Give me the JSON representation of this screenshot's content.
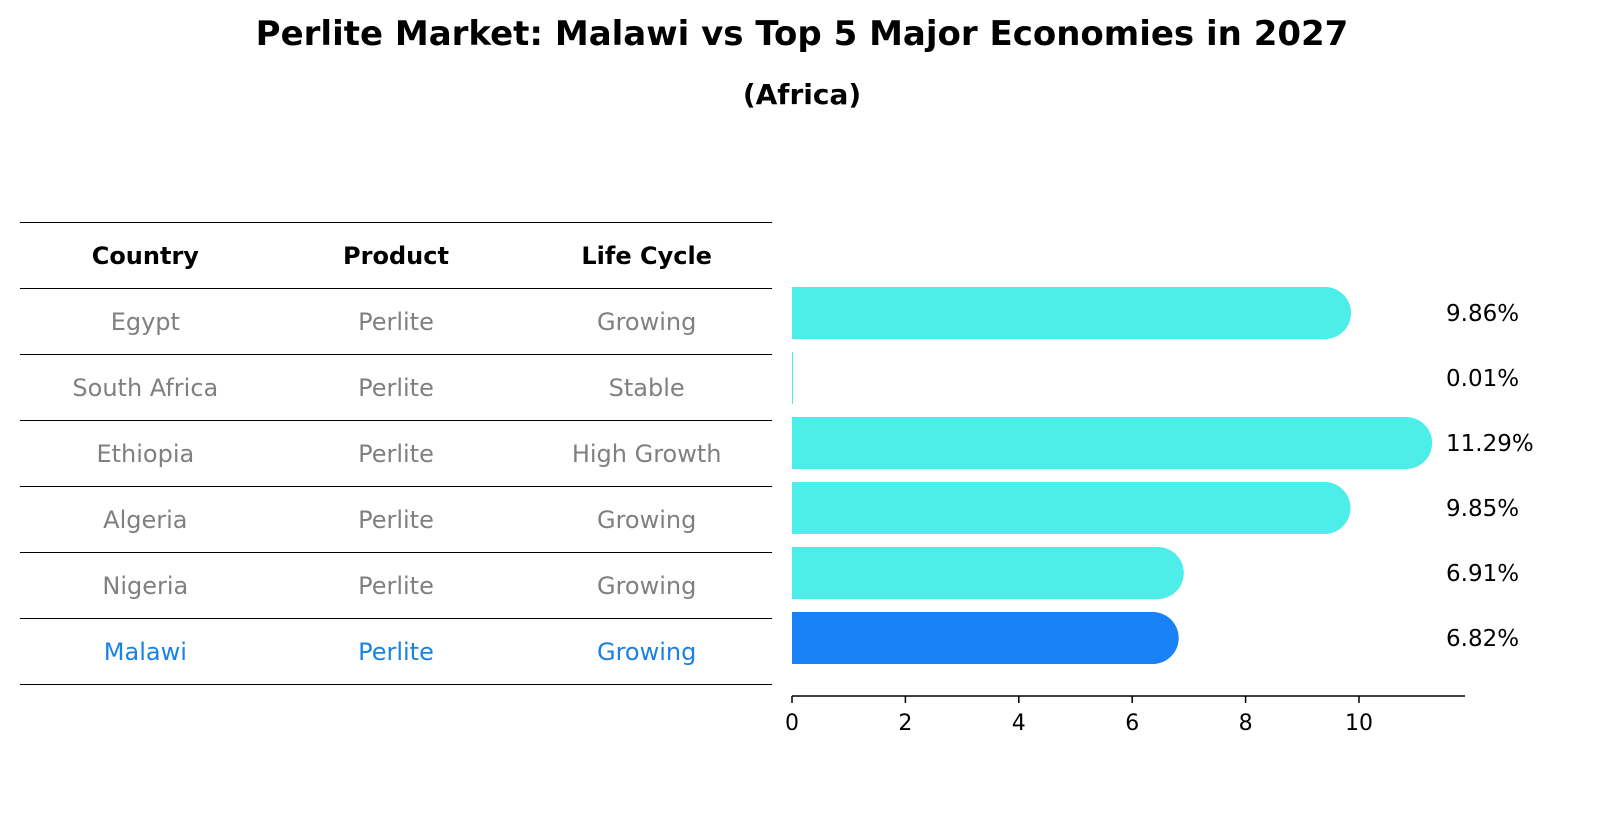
{
  "chart_data": {
    "type": "bar",
    "orientation": "horizontal",
    "title": "Perlite Market: Malawi vs Top 5 Major Economies in 2027",
    "subtitle": "(Africa)",
    "table": {
      "headers": [
        "Country",
        "Product",
        "Life Cycle"
      ],
      "rows": [
        [
          "Egypt",
          "Perlite",
          "Growing"
        ],
        [
          "South Africa",
          "Perlite",
          "Stable"
        ],
        [
          "Ethiopia",
          "Perlite",
          "High Growth"
        ],
        [
          "Algeria",
          "Perlite",
          "Growing"
        ],
        [
          "Nigeria",
          "Perlite",
          "Growing"
        ],
        [
          "Malawi",
          "Perlite",
          "Growing"
        ]
      ],
      "highlight_row": 5
    },
    "categories": [
      "Egypt",
      "South Africa",
      "Ethiopia",
      "Algeria",
      "Nigeria",
      "Malawi"
    ],
    "values": [
      9.86,
      0.01,
      11.29,
      9.85,
      6.91,
      6.82
    ],
    "value_labels": [
      "9.86%",
      "0.01%",
      "11.29%",
      "9.85%",
      "6.91%",
      "6.82%"
    ],
    "xlim": [
      0,
      11.8
    ],
    "xticks": [
      "0",
      "2",
      "4",
      "6",
      "8",
      "10"
    ],
    "grid": false,
    "colors": {
      "bar": "#4deeea",
      "highlight_bar": "#1a82f7",
      "highlight_text": "#1a82e2",
      "row_text": "#808080"
    }
  }
}
